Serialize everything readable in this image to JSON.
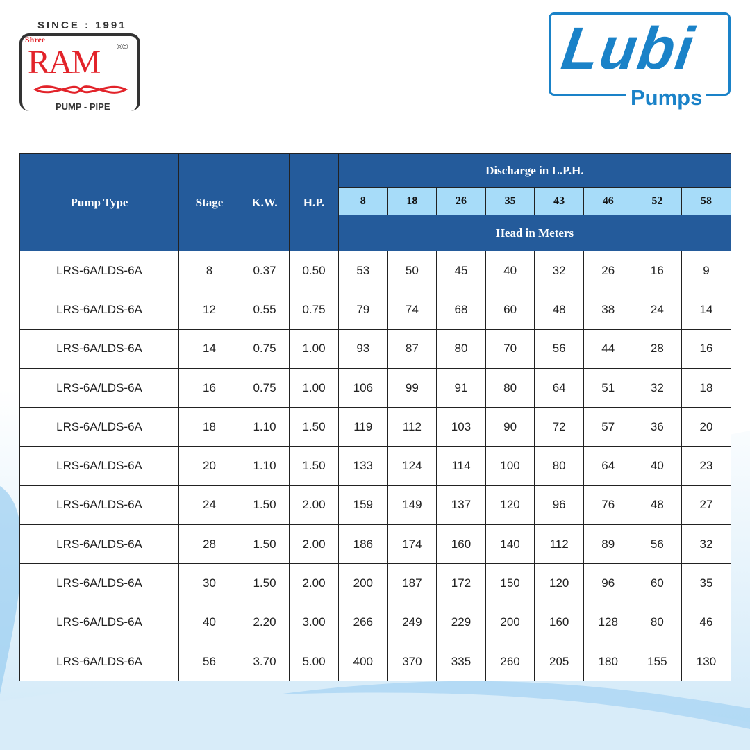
{
  "brand_left": {
    "since": "SINCE : 1991",
    "prefix": "Shree",
    "name": "RAM",
    "marks": "®©",
    "tagline": "PUMP - PIPE"
  },
  "brand_right": {
    "name": "Lubi",
    "tagline": "Pumps"
  },
  "colors": {
    "header": "#245b9b",
    "flow_row": "#a7dcf9",
    "lubi_blue": "#1a82c8",
    "ram_red": "#e2232a"
  },
  "table": {
    "headers": {
      "pump_type": "Pump Type",
      "stage": "Stage",
      "kw": "K.W.",
      "hp": "H.P.",
      "discharge": "Discharge in L.P.H.",
      "head": "Head in Meters"
    },
    "discharge_values": [
      "8",
      "18",
      "26",
      "35",
      "43",
      "46",
      "52",
      "58"
    ],
    "rows": [
      [
        "LRS-6A/LDS-6A",
        "8",
        "0.37",
        "0.50",
        "53",
        "50",
        "45",
        "40",
        "32",
        "26",
        "16",
        "9"
      ],
      [
        "LRS-6A/LDS-6A",
        "12",
        "0.55",
        "0.75",
        "79",
        "74",
        "68",
        "60",
        "48",
        "38",
        "24",
        "14"
      ],
      [
        "LRS-6A/LDS-6A",
        "14",
        "0.75",
        "1.00",
        "93",
        "87",
        "80",
        "70",
        "56",
        "44",
        "28",
        "16"
      ],
      [
        "LRS-6A/LDS-6A",
        "16",
        "0.75",
        "1.00",
        "106",
        "99",
        "91",
        "80",
        "64",
        "51",
        "32",
        "18"
      ],
      [
        "LRS-6A/LDS-6A",
        "18",
        "1.10",
        "1.50",
        "119",
        "112",
        "103",
        "90",
        "72",
        "57",
        "36",
        "20"
      ],
      [
        "LRS-6A/LDS-6A",
        "20",
        "1.10",
        "1.50",
        "133",
        "124",
        "114",
        "100",
        "80",
        "64",
        "40",
        "23"
      ],
      [
        "LRS-6A/LDS-6A",
        "24",
        "1.50",
        "2.00",
        "159",
        "149",
        "137",
        "120",
        "96",
        "76",
        "48",
        "27"
      ],
      [
        "LRS-6A/LDS-6A",
        "28",
        "1.50",
        "2.00",
        "186",
        "174",
        "160",
        "140",
        "112",
        "89",
        "56",
        "32"
      ],
      [
        "LRS-6A/LDS-6A",
        "30",
        "1.50",
        "2.00",
        "200",
        "187",
        "172",
        "150",
        "120",
        "96",
        "60",
        "35"
      ],
      [
        "LRS-6A/LDS-6A",
        "40",
        "2.20",
        "3.00",
        "266",
        "249",
        "229",
        "200",
        "160",
        "128",
        "80",
        "46"
      ],
      [
        "LRS-6A/LDS-6A",
        "56",
        "3.70",
        "5.00",
        "400",
        "370",
        "335",
        "260",
        "205",
        "180",
        "155",
        "130"
      ]
    ]
  }
}
